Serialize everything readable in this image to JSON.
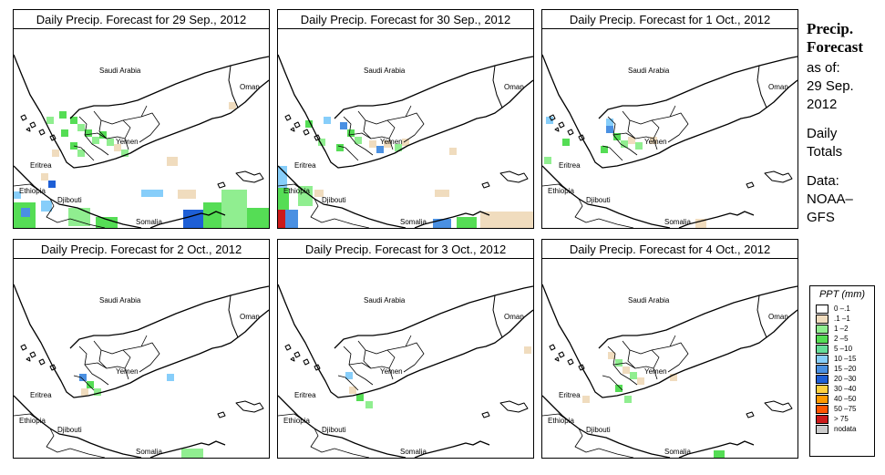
{
  "panels": [
    {
      "title": "Daily Precip. Forecast for  29 Sep., 2012"
    },
    {
      "title": "Daily Precip. Forecast for  30 Sep., 2012"
    },
    {
      "title": "Daily Precip. Forecast for  1 Oct., 2012"
    },
    {
      "title": "Daily Precip. Forecast for  2 Oct., 2012"
    },
    {
      "title": "Daily Precip. Forecast for  3 Oct., 2012"
    },
    {
      "title": "Daily Precip. Forecast for  4 Oct., 2012"
    }
  ],
  "map_labels": {
    "saudi": "Saudi Arabia",
    "oman": "Oman",
    "yemen": "Yemen",
    "eritrea": "Eritrea",
    "ethiopia": "Ethiopia",
    "djibouti": "Djibouti",
    "somalia": "Somalia"
  },
  "sidebar": {
    "title_line1": "Precip.",
    "title_line2": "Forecast",
    "asof_line1": "as of:",
    "asof_line2": "29 Sep.",
    "asof_line3": "2012",
    "totals_line1": "Daily",
    "totals_line2": "Totals",
    "data_line1": "Data:",
    "data_line2": "NOAA–",
    "data_line3": "GFS"
  },
  "legend": {
    "title": "PPT (mm)",
    "items": [
      {
        "label": "0 –.1",
        "color": "#ffffff"
      },
      {
        "label": ".1 –1",
        "color": "#f0dcbe"
      },
      {
        "label": "1 –2",
        "color": "#90ee90"
      },
      {
        "label": "2 –5",
        "color": "#55dd55"
      },
      {
        "label": "5 –10",
        "color": "#66dd99"
      },
      {
        "label": "10 –15",
        "color": "#87cefa"
      },
      {
        "label": "15 –20",
        "color": "#4a90e2"
      },
      {
        "label": "20 –30",
        "color": "#1e5fd6"
      },
      {
        "label": "30 –40",
        "color": "#ffd040"
      },
      {
        "label": "40 –50",
        "color": "#ff9900"
      },
      {
        "label": "50 –75",
        "color": "#ff5500"
      },
      {
        "label": "> 75",
        "color": "#cc1a1a"
      },
      {
        "label": "nodata",
        "color": "#cccccc"
      }
    ]
  }
}
